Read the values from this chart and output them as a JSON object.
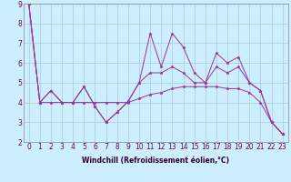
{
  "xlabel": "Windchill (Refroidissement éolien,°C)",
  "bg_color": "#cceeff",
  "grid_color": "#aacccc",
  "line_color": "#993399",
  "xlim": [
    -0.5,
    23.5
  ],
  "ylim": [
    2,
    9
  ],
  "xticks": [
    0,
    1,
    2,
    3,
    4,
    5,
    6,
    7,
    8,
    9,
    10,
    11,
    12,
    13,
    14,
    15,
    16,
    17,
    18,
    19,
    20,
    21,
    22,
    23
  ],
  "yticks": [
    2,
    3,
    4,
    5,
    6,
    7,
    8,
    9
  ],
  "series": [
    [
      9.0,
      4.0,
      4.6,
      4.0,
      4.0,
      4.8,
      3.8,
      3.0,
      3.5,
      4.05,
      5.0,
      7.5,
      5.8,
      7.5,
      6.8,
      5.5,
      5.0,
      6.5,
      6.0,
      6.3,
      5.0,
      4.6,
      3.0,
      2.4
    ],
    [
      9.0,
      4.0,
      4.6,
      4.0,
      4.0,
      4.8,
      3.8,
      3.0,
      3.5,
      4.05,
      5.0,
      5.5,
      5.5,
      5.8,
      5.5,
      5.0,
      5.0,
      5.8,
      5.5,
      5.8,
      5.0,
      4.6,
      3.0,
      2.4
    ],
    [
      9.0,
      4.0,
      4.0,
      4.0,
      4.0,
      4.0,
      4.0,
      4.0,
      4.0,
      4.0,
      4.2,
      4.4,
      4.5,
      4.7,
      4.8,
      4.8,
      4.8,
      4.8,
      4.7,
      4.7,
      4.5,
      4.0,
      3.0,
      2.4
    ]
  ],
  "tick_fontsize": 5.5,
  "xlabel_fontsize": 5.5,
  "tick_color": "#660066",
  "xlabel_color": "#330033"
}
